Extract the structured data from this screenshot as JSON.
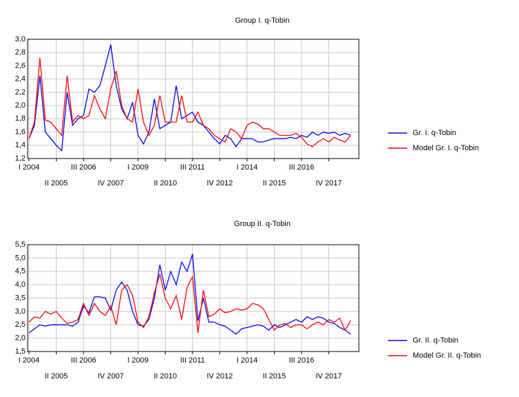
{
  "chart_data": [
    {
      "type": "line",
      "title": "Group I. q-Tobin",
      "categories": [
        "I 2004",
        null,
        null,
        null,
        null,
        "II 2005",
        null,
        null,
        null,
        null,
        "III 2006",
        null,
        null,
        null,
        null,
        "IV 2007",
        null,
        null,
        null,
        null,
        "I 2009",
        null,
        null,
        null,
        null,
        "II 2010",
        null,
        null,
        null,
        null,
        "III 2011",
        null,
        null,
        null,
        null,
        "IV 2012",
        null,
        null,
        null,
        null,
        "I 2014",
        null,
        null,
        null,
        null,
        "II 2015",
        null,
        null,
        null,
        null,
        "III 2016",
        null,
        null,
        null,
        null,
        "IV 2017",
        null,
        null,
        null,
        null
      ],
      "series": [
        {
          "name": "Gr. I. q-Tobin",
          "color": "#0000ff",
          "values": [
            1.5,
            1.7,
            2.45,
            1.6,
            1.5,
            1.4,
            1.32,
            2.2,
            1.7,
            1.8,
            1.85,
            2.25,
            2.2,
            2.3,
            2.6,
            2.92,
            2.3,
            1.95,
            1.8,
            2.05,
            1.55,
            1.42,
            1.6,
            2.1,
            1.65,
            1.7,
            1.75,
            2.3,
            1.8,
            1.85,
            1.9,
            1.75,
            1.7,
            1.6,
            1.5,
            1.42,
            1.55,
            1.5,
            1.38,
            1.5,
            1.5,
            1.5,
            1.45,
            1.45,
            1.48,
            1.5,
            1.5,
            1.5,
            1.52,
            1.5,
            1.55,
            1.52,
            1.6,
            1.55,
            1.6,
            1.58,
            1.6,
            1.55,
            1.58,
            1.55
          ]
        },
        {
          "name": "Model Gr. I. q-Tobin",
          "color": "#ff0000",
          "values": [
            1.5,
            1.75,
            2.72,
            1.78,
            1.75,
            1.65,
            1.55,
            2.45,
            1.75,
            1.85,
            1.8,
            1.85,
            2.15,
            1.95,
            1.8,
            2.25,
            2.52,
            2.0,
            1.8,
            1.75,
            2.25,
            1.75,
            1.55,
            1.7,
            2.15,
            1.75,
            1.75,
            1.75,
            2.15,
            1.75,
            1.75,
            1.9,
            1.7,
            1.65,
            1.55,
            1.5,
            1.45,
            1.65,
            1.6,
            1.5,
            1.7,
            1.75,
            1.72,
            1.65,
            1.65,
            1.6,
            1.55,
            1.55,
            1.55,
            1.58,
            1.52,
            1.42,
            1.38,
            1.45,
            1.5,
            1.45,
            1.52,
            1.48,
            1.45,
            1.55
          ]
        }
      ],
      "ylim": [
        1.2,
        3
      ],
      "yticks": [
        {
          "value": 1.2,
          "label": "1,2"
        },
        {
          "value": 1.4,
          "label": "1,4"
        },
        {
          "value": 1.6,
          "label": "1,6"
        },
        {
          "value": 1.8,
          "label": "1,8"
        },
        {
          "value": 2,
          "label": "2,0"
        },
        {
          "value": 2.2,
          "label": "2,2"
        },
        {
          "value": 2.4,
          "label": "2,4"
        },
        {
          "value": 2.6,
          "label": "2,6"
        },
        {
          "value": 2.8,
          "label": "2,8"
        },
        {
          "value": 3,
          "label": "3,0"
        }
      ],
      "grid": true,
      "legend": "right"
    },
    {
      "type": "line",
      "title": "Group II. q-Tobin",
      "categories": [
        "I 2004",
        null,
        null,
        null,
        null,
        "II 2005",
        null,
        null,
        null,
        null,
        "III 2006",
        null,
        null,
        null,
        null,
        "IV 2007",
        null,
        null,
        null,
        null,
        "I 2009",
        null,
        null,
        null,
        null,
        "II 2010",
        null,
        null,
        null,
        null,
        "III 2011",
        null,
        null,
        null,
        null,
        "IV 2012",
        null,
        null,
        null,
        null,
        "I 2014",
        null,
        null,
        null,
        null,
        "II 2015",
        null,
        null,
        null,
        null,
        "III 2016",
        null,
        null,
        null,
        null,
        "IV 2017",
        null,
        null,
        null,
        null
      ],
      "series": [
        {
          "name": "Gr. II. q-Tobin",
          "color": "#0000ff",
          "values": [
            2.2,
            2.35,
            2.5,
            2.45,
            2.5,
            2.5,
            2.5,
            2.5,
            2.45,
            2.6,
            3.2,
            2.95,
            3.55,
            3.55,
            3.5,
            3.05,
            3.8,
            4.1,
            3.8,
            3.0,
            2.5,
            2.45,
            2.7,
            3.5,
            4.75,
            3.8,
            4.5,
            4.0,
            4.85,
            4.5,
            5.15,
            2.65,
            3.5,
            2.6,
            2.6,
            2.5,
            2.45,
            2.3,
            2.15,
            2.35,
            2.4,
            2.45,
            2.5,
            2.45,
            2.3,
            2.5,
            2.4,
            2.5,
            2.6,
            2.7,
            2.6,
            2.8,
            2.7,
            2.8,
            2.75,
            2.6,
            2.55,
            2.4,
            2.3,
            2.15
          ]
        },
        {
          "name": "Model Gr. II. q-Tobin",
          "color": "#ff0000",
          "values": [
            2.6,
            2.8,
            2.75,
            3.0,
            2.9,
            3.0,
            2.75,
            2.55,
            2.6,
            2.7,
            3.3,
            2.85,
            3.3,
            3.0,
            2.85,
            3.2,
            2.5,
            3.8,
            4.0,
            3.6,
            2.6,
            2.4,
            2.8,
            3.7,
            4.4,
            3.5,
            3.1,
            3.6,
            2.7,
            3.9,
            4.3,
            2.2,
            3.8,
            2.8,
            2.9,
            3.1,
            2.95,
            3.0,
            3.1,
            3.05,
            3.1,
            3.3,
            3.25,
            3.1,
            2.7,
            2.3,
            2.5,
            2.55,
            2.4,
            2.5,
            2.5,
            2.35,
            2.5,
            2.6,
            2.5,
            2.7,
            2.6,
            2.75,
            2.3,
            2.65
          ]
        }
      ],
      "ylim": [
        1.5,
        5.5
      ],
      "yticks": [
        {
          "value": 1.5,
          "label": "1,5"
        },
        {
          "value": 2,
          "label": "2,0"
        },
        {
          "value": 2.5,
          "label": "2,5"
        },
        {
          "value": 3,
          "label": "3,0"
        },
        {
          "value": 3.5,
          "label": "3,5"
        },
        {
          "value": 4,
          "label": "4,0"
        },
        {
          "value": 4.5,
          "label": "4,5"
        },
        {
          "value": 5,
          "label": "5,0"
        },
        {
          "value": 5.5,
          "label": "5,5"
        }
      ],
      "grid": true,
      "legend": "right"
    }
  ]
}
